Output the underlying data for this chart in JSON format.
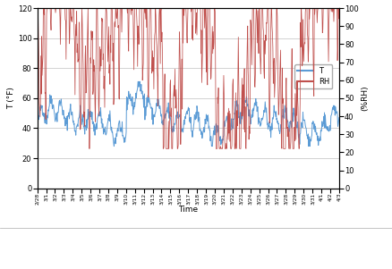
{
  "title": "",
  "xlabel": "Time",
  "ylabel_left": "T (°F)",
  "ylabel_right": "(%RH)",
  "ylim_left": [
    0,
    120
  ],
  "ylim_right": [
    0,
    100
  ],
  "yticks_left": [
    0,
    20,
    40,
    60,
    80,
    100,
    120
  ],
  "yticks_right": [
    0,
    10,
    20,
    30,
    40,
    50,
    60,
    70,
    80,
    90,
    100
  ],
  "temp_color": "#5B9BD5",
  "rh_color": "#C0504D",
  "legend_T": "T",
  "legend_RH": "RH",
  "n_points": 744,
  "seed": 42,
  "plot_bg": "#FFFFFF",
  "fig_bg": "#FFFFFF",
  "grid_color": "#C0C0C0",
  "date_labels": [
    "2/28",
    "3/1",
    "3/2",
    "3/3",
    "3/4",
    "3/5",
    "3/6",
    "3/7",
    "3/8",
    "3/9",
    "3/10",
    "3/11",
    "3/12",
    "3/13",
    "3/14",
    "3/15",
    "3/16",
    "3/17",
    "3/18",
    "3/19",
    "3/20",
    "3/21",
    "3/22",
    "3/23",
    "3/24",
    "3/25",
    "3/26",
    "3/27",
    "3/28",
    "3/29",
    "3/30",
    "3/31",
    "4/1",
    "4/2",
    "4/3"
  ]
}
